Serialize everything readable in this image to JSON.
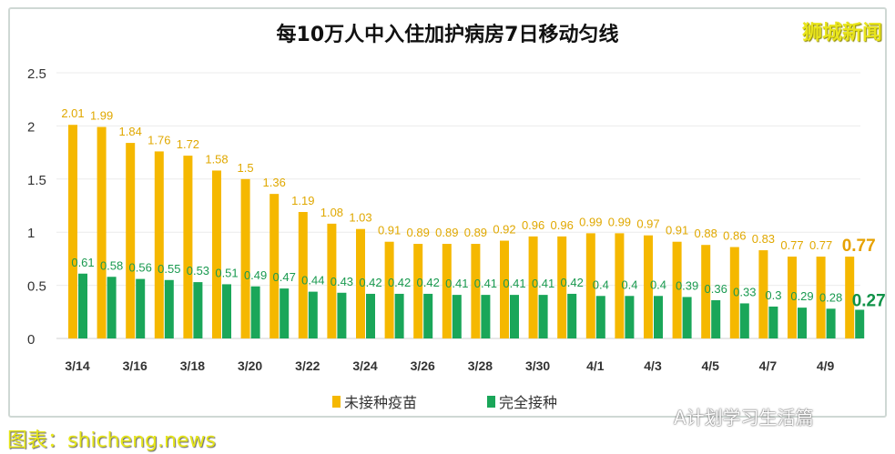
{
  "title": "每10万人中入住加护病房7日移动匀线",
  "brand": "狮城新闻",
  "watermarks": {
    "bottom_left": "图表：shicheng.news",
    "bottom_right": "A计划学习生活篇"
  },
  "colors": {
    "unvaccinated": "#f5b800",
    "vaccinated": "#1aa659",
    "unvaccinated_last_label": "#e6a100",
    "vaccinated_last_label": "#109248"
  },
  "chart_data": {
    "type": "bar",
    "title": "每10万人中入住加护病房7日移动匀线",
    "categories": [
      "3/14",
      "3/15",
      "3/16",
      "3/17",
      "3/18",
      "3/19",
      "3/20",
      "3/21",
      "3/22",
      "3/23",
      "3/24",
      "3/25",
      "3/26",
      "3/27",
      "3/28",
      "3/29",
      "3/30",
      "3/31",
      "4/1",
      "4/2",
      "4/3",
      "4/4",
      "4/5",
      "4/6",
      "4/7",
      "4/8",
      "4/9",
      "4/10"
    ],
    "tick_labels": [
      "3/14",
      "3/16",
      "3/18",
      "3/20",
      "3/22",
      "3/24",
      "3/26",
      "3/28",
      "3/30",
      "4/1",
      "4/3",
      "4/5",
      "4/7",
      "4/9"
    ],
    "yticks": [
      "0",
      "0.5",
      "1",
      "1.5",
      "2",
      "2.5"
    ],
    "ylim": [
      0,
      2.5
    ],
    "grid": true,
    "legend_position": "bottom",
    "series": [
      {
        "name": "未接种疫苗",
        "values": [
          2.01,
          1.99,
          1.84,
          1.76,
          1.72,
          1.58,
          1.5,
          1.36,
          1.19,
          1.08,
          1.03,
          0.91,
          0.89,
          0.89,
          0.89,
          0.92,
          0.96,
          0.96,
          0.99,
          0.99,
          0.97,
          0.91,
          0.88,
          0.86,
          0.83,
          0.77,
          0.77,
          0.77
        ]
      },
      {
        "name": "完全接种",
        "values": [
          0.61,
          0.58,
          0.56,
          0.55,
          0.53,
          0.51,
          0.49,
          0.47,
          0.44,
          0.43,
          0.42,
          0.42,
          0.42,
          0.41,
          0.41,
          0.41,
          0.41,
          0.42,
          0.4,
          0.4,
          0.4,
          0.39,
          0.36,
          0.33,
          0.3,
          0.29,
          0.28,
          0.27
        ]
      }
    ]
  }
}
